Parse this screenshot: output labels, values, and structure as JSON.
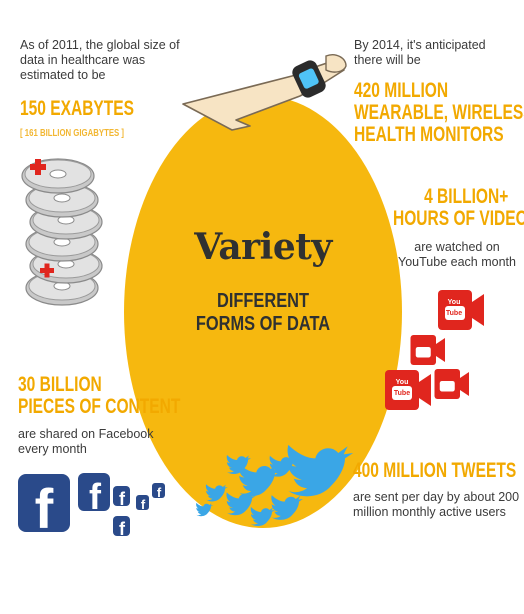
{
  "center": {
    "title": "Variety",
    "subtitle_line1": "DIFFERENT",
    "subtitle_line2": "FORMS OF DATA"
  },
  "healthcare": {
    "intro_line1": "As of 2011, the global size of",
    "intro_line2": "data in healthcare was",
    "intro_line3": "estimated to be",
    "headline": "150 EXABYTES",
    "note": "[ 161 BILLION GIGABYTES ]"
  },
  "wearables": {
    "intro_line1": "By 2014, it's anticipated",
    "intro_line2": "there will be",
    "headline_line1": "420 MILLION",
    "headline_line2": "WEARABLE, WIRELESS",
    "headline_line3": "HEALTH MONITORS"
  },
  "video": {
    "headline_line1": "4 BILLION+",
    "headline_line2": "HOURS OF VIDEO",
    "desc_line1": "are watched on",
    "desc_line2": "YouTube each month",
    "icon_text_you": "You",
    "icon_text_tube": "Tube"
  },
  "facebook": {
    "headline_line1": "30 BILLION",
    "headline_line2": "PIECES OF CONTENT",
    "desc_line1": "are shared on Facebook",
    "desc_line2": "every month",
    "icon_letter": "f"
  },
  "tweets": {
    "headline": "400 MILLION TWEETS",
    "desc_line1": "are sent per day by about 200",
    "desc_line2": "million monthly active users"
  },
  "colors": {
    "yellow": "#f6b80f",
    "orange_text": "#f2a900",
    "youtube_red": "#e0261e",
    "facebook_blue": "#2a4a8a",
    "twitter_blue": "#3aa6e6"
  },
  "icons": [
    "cd-stack-icon",
    "red-cross-icon",
    "arm-icon",
    "wristband-icon",
    "youtube-camera-icon",
    "facebook-icon",
    "twitter-bird-icon"
  ]
}
